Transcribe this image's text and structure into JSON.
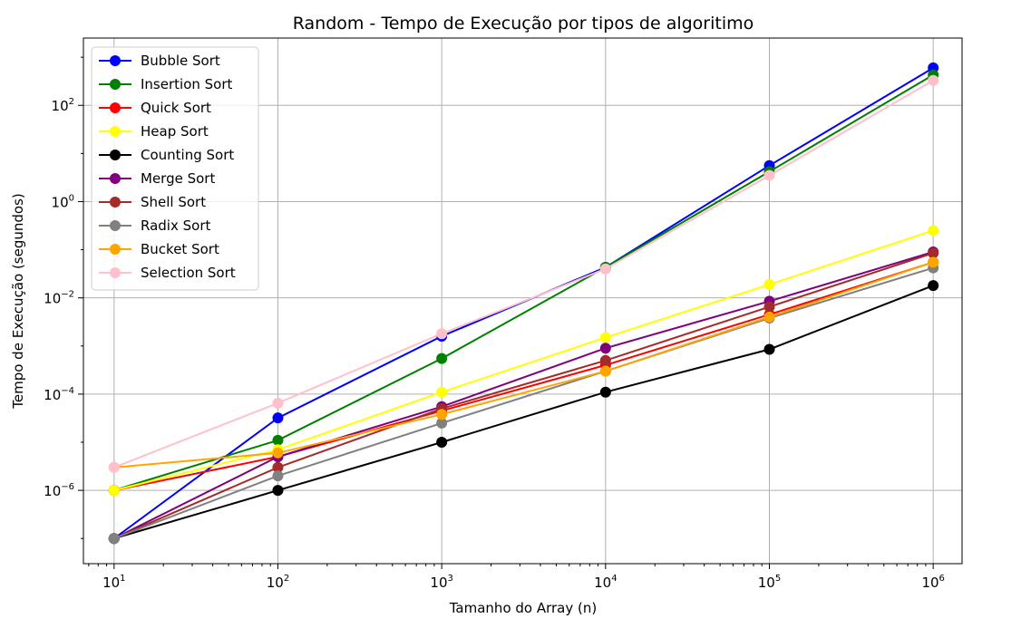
{
  "chart_data": {
    "type": "line",
    "title": "Random - Tempo de Execução por tipos de algoritimo",
    "xlabel": "Tamanho do Array (n)",
    "ylabel": "Tempo de Execução (segundos)",
    "x_scale": "log",
    "y_scale": "log",
    "grid": true,
    "legend_position": "top-left",
    "xlim": [
      6.5,
      1500000
    ],
    "ylim": [
      3e-08,
      2500
    ],
    "x_ticks": [
      {
        "value": 10,
        "base": "10",
        "exp": "1"
      },
      {
        "value": 100,
        "base": "10",
        "exp": "2"
      },
      {
        "value": 1000,
        "base": "10",
        "exp": "3"
      },
      {
        "value": 10000,
        "base": "10",
        "exp": "4"
      },
      {
        "value": 100000,
        "base": "10",
        "exp": "5"
      },
      {
        "value": 1000000,
        "base": "10",
        "exp": "6"
      }
    ],
    "y_ticks": [
      {
        "value": 1e-06,
        "base": "10",
        "exp": "−6"
      },
      {
        "value": 0.0001,
        "base": "10",
        "exp": "−4"
      },
      {
        "value": 0.01,
        "base": "10",
        "exp": "−2"
      },
      {
        "value": 1,
        "base": "10",
        "exp": "0"
      },
      {
        "value": 100,
        "base": "10",
        "exp": "2"
      }
    ],
    "x": [
      10,
      100,
      1000,
      10000,
      100000,
      1000000
    ],
    "series": [
      {
        "name": "Bubble Sort",
        "color": "#0000ff",
        "values": [
          1e-07,
          3.2e-05,
          0.0016,
          0.043,
          5.6,
          600
        ]
      },
      {
        "name": "Insertion Sort",
        "color": "#008000",
        "values": [
          1e-06,
          1.1e-05,
          0.00055,
          0.043,
          4.2,
          430
        ]
      },
      {
        "name": "Quick Sort",
        "color": "#ff0000",
        "values": [
          1e-06,
          5e-06,
          4.5e-05,
          0.0004,
          0.0045,
          0.055
        ]
      },
      {
        "name": "Heap Sort",
        "color": "#ffff00",
        "values": [
          1e-06,
          7e-06,
          0.00011,
          0.0015,
          0.019,
          0.25
        ]
      },
      {
        "name": "Counting Sort",
        "color": "#000000",
        "values": [
          1e-07,
          1e-06,
          1e-05,
          0.00011,
          0.00085,
          0.018
        ]
      },
      {
        "name": "Merge Sort",
        "color": "#800080",
        "values": [
          1e-07,
          5e-06,
          5.5e-05,
          0.0009,
          0.0085,
          0.09
        ]
      },
      {
        "name": "Shell Sort",
        "color": "#a52a2a",
        "values": [
          1e-07,
          3e-06,
          5e-05,
          0.0005,
          0.0065,
          0.085
        ]
      },
      {
        "name": "Radix Sort",
        "color": "#808080",
        "values": [
          1e-07,
          2e-06,
          2.5e-05,
          0.0003,
          0.0038,
          0.042
        ]
      },
      {
        "name": "Bucket Sort",
        "color": "#ffa500",
        "values": [
          3e-06,
          6e-06,
          3.8e-05,
          0.0003,
          0.004,
          0.055
        ]
      },
      {
        "name": "Selection Sort",
        "color": "#ffc0cb",
        "values": [
          3e-06,
          6.5e-05,
          0.0018,
          0.04,
          3.5,
          330
        ]
      }
    ]
  }
}
